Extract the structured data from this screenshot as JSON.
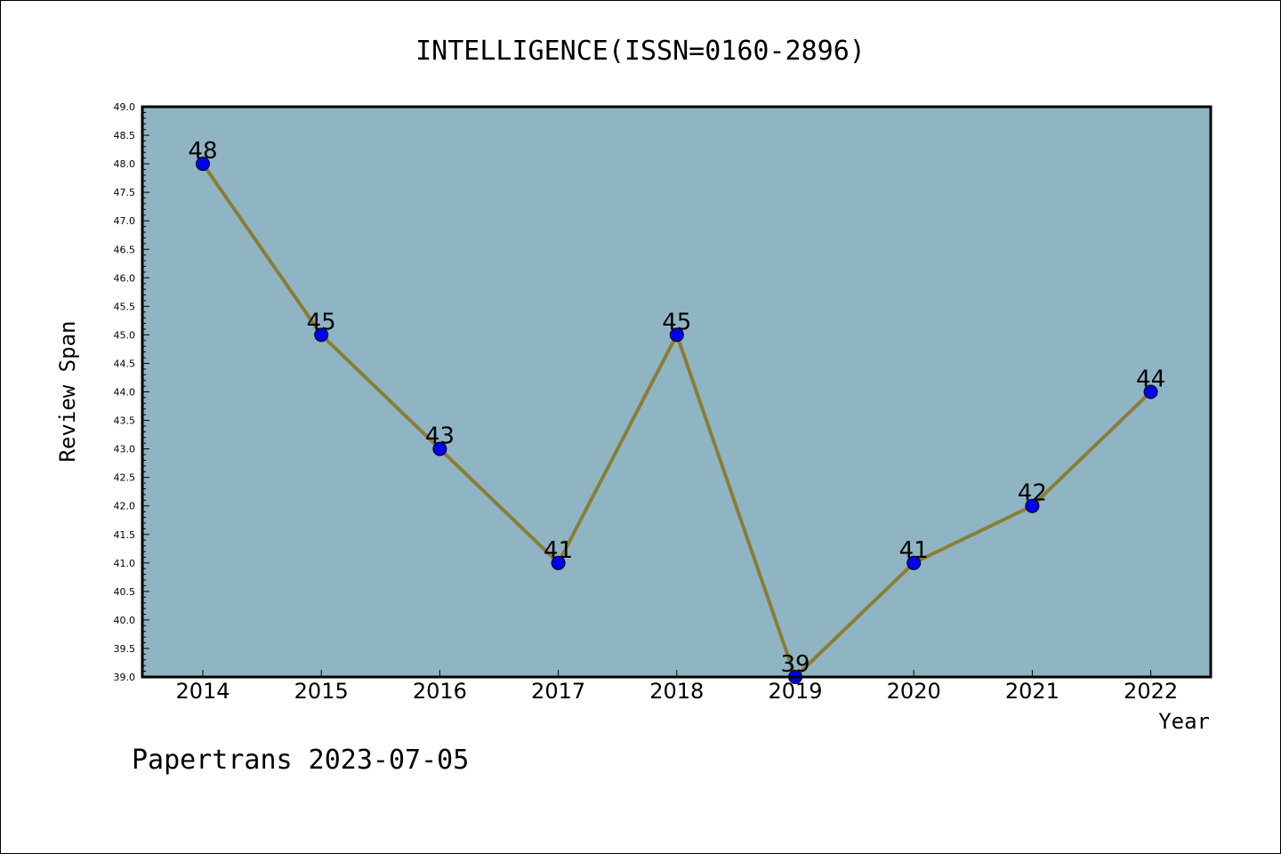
{
  "chart_data": {
    "type": "line",
    "title": "INTELLIGENCE(ISSN=0160-2896)",
    "xlabel": "Year",
    "ylabel": "Review Span",
    "categories": [
      "2014",
      "2015",
      "2016",
      "2017",
      "2018",
      "2019",
      "2020",
      "2021",
      "2022"
    ],
    "values": [
      48,
      45,
      43,
      41,
      45,
      39,
      41,
      42,
      44
    ],
    "ylim": [
      39.0,
      49.0
    ],
    "ytick_step": 0.5,
    "yticks": [
      "39.0",
      "39.5",
      "40.0",
      "40.5",
      "41.0",
      "41.5",
      "42.0",
      "42.5",
      "43.0",
      "43.5",
      "44.0",
      "44.5",
      "45.0",
      "45.5",
      "46.0",
      "46.5",
      "47.0",
      "47.5",
      "48.0",
      "48.5",
      "49.0"
    ],
    "grid": false,
    "legend": "none",
    "colors": {
      "plot_background": "#8fb5c4",
      "line": "#8b7d35",
      "marker": "#0000ee"
    }
  },
  "footer": "Papertrans 2023-07-05"
}
